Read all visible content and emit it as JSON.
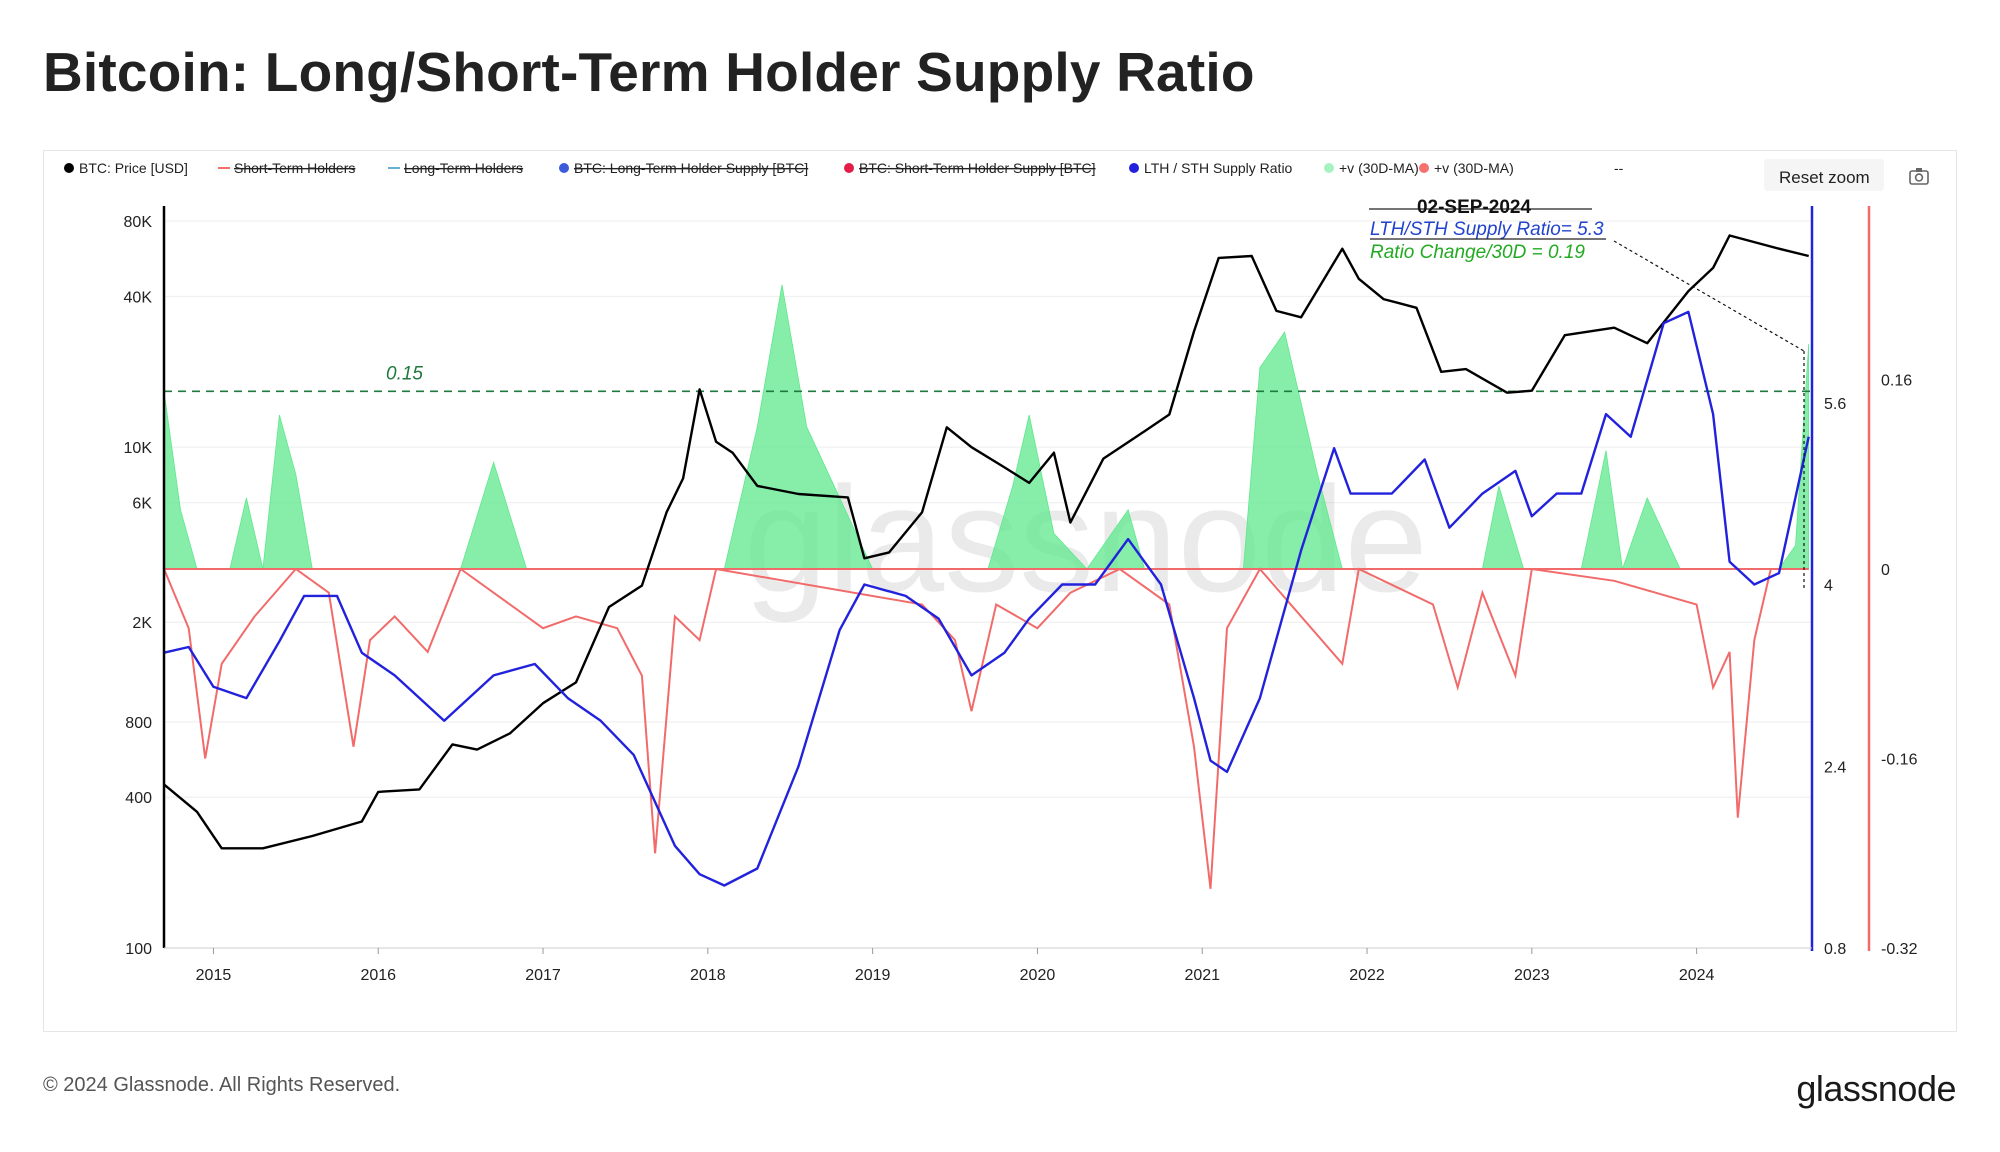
{
  "header": {
    "title": "Bitcoin: Long/Short-Term Holder Supply Ratio"
  },
  "footer": {
    "copyright": "© 2024 Glassnode. All Rights Reserved.",
    "brand": "glassnode"
  },
  "toolbar": {
    "reset_zoom": "Reset zoom",
    "camera_icon": "camera-icon"
  },
  "watermark": "glassnode",
  "legend": [
    {
      "label": "BTC: Price [USD]",
      "color": "#000000",
      "marker": "dot",
      "struck": false
    },
    {
      "label": "Short-Term Holders",
      "color": "#f4716b",
      "marker": "line",
      "struck": true
    },
    {
      "label": "Long-Term Holders",
      "color": "#6aaed6",
      "marker": "line",
      "struck": true
    },
    {
      "label": "BTC: Long-Term Holder Supply [BTC]",
      "color": "#3b5bdb",
      "marker": "dot",
      "struck": true
    },
    {
      "label": "BTC: Short-Term Holder Supply [BTC]",
      "color": "#e11d48",
      "marker": "dot",
      "struck": true
    },
    {
      "label": "LTH / STH Supply Ratio",
      "color": "#2222dd",
      "marker": "dot",
      "struck": false
    },
    {
      "label": "+v (30D-MA)",
      "color": "#a7f3c0",
      "marker": "dot",
      "struck": false
    },
    {
      "label": "+v (30D-MA)",
      "color": "#f87171",
      "marker": "dot",
      "struck": false
    },
    {
      "label": "--",
      "color": "#444444",
      "marker": "none",
      "struck": false
    }
  ],
  "annotation": {
    "date": "02-SEP-2024",
    "ratio_text": "LTH/STH Supply Ratio= 5.3",
    "change_text": "Ratio Change/30D = 0.19",
    "threshold_label": "0.15"
  },
  "chart_data": {
    "type": "line",
    "x_labels": [
      "2015",
      "2016",
      "2017",
      "2018",
      "2019",
      "2020",
      "2021",
      "2022",
      "2023",
      "2024"
    ],
    "y_left": {
      "label": "",
      "scale": "log",
      "ticks": [
        "80K",
        "40K",
        "10K",
        "6K",
        "2K",
        "800",
        "400",
        "100"
      ],
      "tick_values": [
        80000,
        40000,
        10000,
        6000,
        2000,
        800,
        400,
        100
      ],
      "range": [
        100,
        80000
      ]
    },
    "y_right1": {
      "label": "",
      "ticks": [
        "5.6",
        "4",
        "2.4",
        "0.8"
      ],
      "tick_values": [
        5.6,
        4,
        2.4,
        0.8
      ],
      "range": [
        0.8,
        7.2
      ]
    },
    "y_right2": {
      "label": "",
      "ticks": [
        "0.16",
        "0",
        "-0.16",
        "-0.32"
      ],
      "tick_values": [
        0.16,
        0,
        -0.16,
        -0.32
      ],
      "range": [
        -0.32,
        0.32
      ]
    },
    "threshold": 0.15,
    "series": [
      {
        "name": "BTC: Price [USD]",
        "axis": "left",
        "color": "#000000",
        "points": [
          [
            2014.7,
            450
          ],
          [
            2014.9,
            350
          ],
          [
            2015.05,
            250
          ],
          [
            2015.3,
            250
          ],
          [
            2015.6,
            280
          ],
          [
            2015.9,
            320
          ],
          [
            2016.0,
            420
          ],
          [
            2016.25,
            430
          ],
          [
            2016.45,
            650
          ],
          [
            2016.6,
            620
          ],
          [
            2016.8,
            720
          ],
          [
            2017.0,
            950
          ],
          [
            2017.2,
            1150
          ],
          [
            2017.4,
            2300
          ],
          [
            2017.6,
            2800
          ],
          [
            2017.75,
            5500
          ],
          [
            2017.85,
            7500
          ],
          [
            2017.95,
            17000
          ],
          [
            2018.05,
            10500
          ],
          [
            2018.15,
            9500
          ],
          [
            2018.3,
            7000
          ],
          [
            2018.55,
            6500
          ],
          [
            2018.85,
            6300
          ],
          [
            2018.95,
            3600
          ],
          [
            2019.1,
            3800
          ],
          [
            2019.3,
            5500
          ],
          [
            2019.45,
            12000
          ],
          [
            2019.6,
            10000
          ],
          [
            2019.8,
            8300
          ],
          [
            2019.95,
            7200
          ],
          [
            2020.1,
            9500
          ],
          [
            2020.2,
            5000
          ],
          [
            2020.4,
            9000
          ],
          [
            2020.6,
            11000
          ],
          [
            2020.8,
            13500
          ],
          [
            2020.95,
            29000
          ],
          [
            2021.1,
            57000
          ],
          [
            2021.3,
            58000
          ],
          [
            2021.45,
            35000
          ],
          [
            2021.6,
            33000
          ],
          [
            2021.85,
            62000
          ],
          [
            2021.95,
            47000
          ],
          [
            2022.1,
            39000
          ],
          [
            2022.3,
            36000
          ],
          [
            2022.45,
            20000
          ],
          [
            2022.6,
            20500
          ],
          [
            2022.85,
            16500
          ],
          [
            2023.0,
            16800
          ],
          [
            2023.2,
            28000
          ],
          [
            2023.5,
            30000
          ],
          [
            2023.7,
            26000
          ],
          [
            2023.95,
            42000
          ],
          [
            2024.1,
            52000
          ],
          [
            2024.2,
            70000
          ],
          [
            2024.5,
            62000
          ],
          [
            2024.68,
            58000
          ]
        ]
      },
      {
        "name": "LTH / STH Supply Ratio",
        "axis": "right1",
        "color": "#2222dd",
        "points": [
          [
            2014.7,
            3.4
          ],
          [
            2014.85,
            3.45
          ],
          [
            2015.0,
            3.1
          ],
          [
            2015.2,
            3.0
          ],
          [
            2015.4,
            3.5
          ],
          [
            2015.55,
            3.9
          ],
          [
            2015.75,
            3.9
          ],
          [
            2015.9,
            3.4
          ],
          [
            2016.1,
            3.2
          ],
          [
            2016.4,
            2.8
          ],
          [
            2016.7,
            3.2
          ],
          [
            2016.95,
            3.3
          ],
          [
            2017.15,
            3.0
          ],
          [
            2017.35,
            2.8
          ],
          [
            2017.55,
            2.5
          ],
          [
            2017.8,
            1.7
          ],
          [
            2017.95,
            1.45
          ],
          [
            2018.1,
            1.35
          ],
          [
            2018.3,
            1.5
          ],
          [
            2018.55,
            2.4
          ],
          [
            2018.8,
            3.6
          ],
          [
            2018.95,
            4.0
          ],
          [
            2019.2,
            3.9
          ],
          [
            2019.4,
            3.7
          ],
          [
            2019.6,
            3.2
          ],
          [
            2019.8,
            3.4
          ],
          [
            2019.95,
            3.7
          ],
          [
            2020.15,
            4.0
          ],
          [
            2020.35,
            4.0
          ],
          [
            2020.55,
            4.4
          ],
          [
            2020.75,
            4.0
          ],
          [
            2020.95,
            3.0
          ],
          [
            2021.05,
            2.45
          ],
          [
            2021.15,
            2.35
          ],
          [
            2021.35,
            3.0
          ],
          [
            2021.6,
            4.3
          ],
          [
            2021.8,
            5.2
          ],
          [
            2021.9,
            4.8
          ],
          [
            2022.15,
            4.8
          ],
          [
            2022.35,
            5.1
          ],
          [
            2022.5,
            4.5
          ],
          [
            2022.7,
            4.8
          ],
          [
            2022.9,
            5.0
          ],
          [
            2023.0,
            4.6
          ],
          [
            2023.15,
            4.8
          ],
          [
            2023.3,
            4.8
          ],
          [
            2023.45,
            5.5
          ],
          [
            2023.6,
            5.3
          ],
          [
            2023.8,
            6.3
          ],
          [
            2023.95,
            6.4
          ],
          [
            2024.1,
            5.5
          ],
          [
            2024.2,
            4.2
          ],
          [
            2024.35,
            4.0
          ],
          [
            2024.5,
            4.1
          ],
          [
            2024.68,
            5.3
          ]
        ]
      },
      {
        "name": "+v (30D-MA)",
        "axis": "right2",
        "color": "#5ee88c",
        "fill": "positive",
        "points": [
          [
            2014.7,
            0.15
          ],
          [
            2014.8,
            0.05
          ],
          [
            2014.9,
            0.0
          ],
          [
            2015.1,
            0.0
          ],
          [
            2015.2,
            0.06
          ],
          [
            2015.3,
            0.0
          ],
          [
            2015.4,
            0.13
          ],
          [
            2015.5,
            0.08
          ],
          [
            2015.6,
            0.0
          ],
          [
            2016.5,
            0.0
          ],
          [
            2016.7,
            0.09
          ],
          [
            2016.9,
            0.0
          ],
          [
            2017.8,
            0.0
          ],
          [
            2018.1,
            0.0
          ],
          [
            2018.3,
            0.12
          ],
          [
            2018.45,
            0.24
          ],
          [
            2018.6,
            0.12
          ],
          [
            2018.8,
            0.06
          ],
          [
            2019.0,
            0.0
          ],
          [
            2019.7,
            0.0
          ],
          [
            2019.85,
            0.07
          ],
          [
            2019.95,
            0.13
          ],
          [
            2020.1,
            0.03
          ],
          [
            2020.3,
            0.0
          ],
          [
            2020.55,
            0.05
          ],
          [
            2020.65,
            0.0
          ],
          [
            2021.25,
            0.0
          ],
          [
            2021.35,
            0.17
          ],
          [
            2021.5,
            0.2
          ],
          [
            2021.7,
            0.08
          ],
          [
            2021.85,
            0.0
          ],
          [
            2022.7,
            0.0
          ],
          [
            2022.8,
            0.07
          ],
          [
            2022.95,
            0.0
          ],
          [
            2023.3,
            0.0
          ],
          [
            2023.45,
            0.1
          ],
          [
            2023.55,
            0.0
          ],
          [
            2023.7,
            0.06
          ],
          [
            2023.9,
            0.0
          ],
          [
            2024.5,
            0.0
          ],
          [
            2024.6,
            0.02
          ],
          [
            2024.68,
            0.19
          ]
        ]
      },
      {
        "name": "+v (30D-MA)",
        "axis": "right2",
        "color": "#f26b6b",
        "fill": "negative",
        "points": [
          [
            2014.7,
            0.0
          ],
          [
            2014.85,
            -0.05
          ],
          [
            2014.95,
            -0.16
          ],
          [
            2015.05,
            -0.08
          ],
          [
            2015.25,
            -0.04
          ],
          [
            2015.5,
            0.0
          ],
          [
            2015.7,
            -0.02
          ],
          [
            2015.85,
            -0.15
          ],
          [
            2015.95,
            -0.06
          ],
          [
            2016.1,
            -0.04
          ],
          [
            2016.3,
            -0.07
          ],
          [
            2016.5,
            0.0
          ],
          [
            2017.0,
            -0.05
          ],
          [
            2017.2,
            -0.04
          ],
          [
            2017.45,
            -0.05
          ],
          [
            2017.6,
            -0.09
          ],
          [
            2017.68,
            -0.24
          ],
          [
            2017.8,
            -0.04
          ],
          [
            2017.95,
            -0.06
          ],
          [
            2018.05,
            0.0
          ],
          [
            2019.3,
            -0.03
          ],
          [
            2019.5,
            -0.06
          ],
          [
            2019.6,
            -0.12
          ],
          [
            2019.75,
            -0.03
          ],
          [
            2020.0,
            -0.05
          ],
          [
            2020.2,
            -0.02
          ],
          [
            2020.5,
            0.0
          ],
          [
            2020.8,
            -0.03
          ],
          [
            2020.95,
            -0.15
          ],
          [
            2021.05,
            -0.27
          ],
          [
            2021.15,
            -0.05
          ],
          [
            2021.35,
            0.0
          ],
          [
            2021.85,
            -0.08
          ],
          [
            2021.95,
            0.0
          ],
          [
            2022.4,
            -0.03
          ],
          [
            2022.55,
            -0.1
          ],
          [
            2022.7,
            -0.02
          ],
          [
            2022.9,
            -0.09
          ],
          [
            2023.0,
            0.0
          ],
          [
            2023.5,
            -0.01
          ],
          [
            2024.0,
            -0.03
          ],
          [
            2024.1,
            -0.1
          ],
          [
            2024.2,
            -0.07
          ],
          [
            2024.25,
            -0.21
          ],
          [
            2024.35,
            -0.06
          ],
          [
            2024.45,
            0.0
          ],
          [
            2024.68,
            0.0
          ]
        ]
      }
    ]
  }
}
